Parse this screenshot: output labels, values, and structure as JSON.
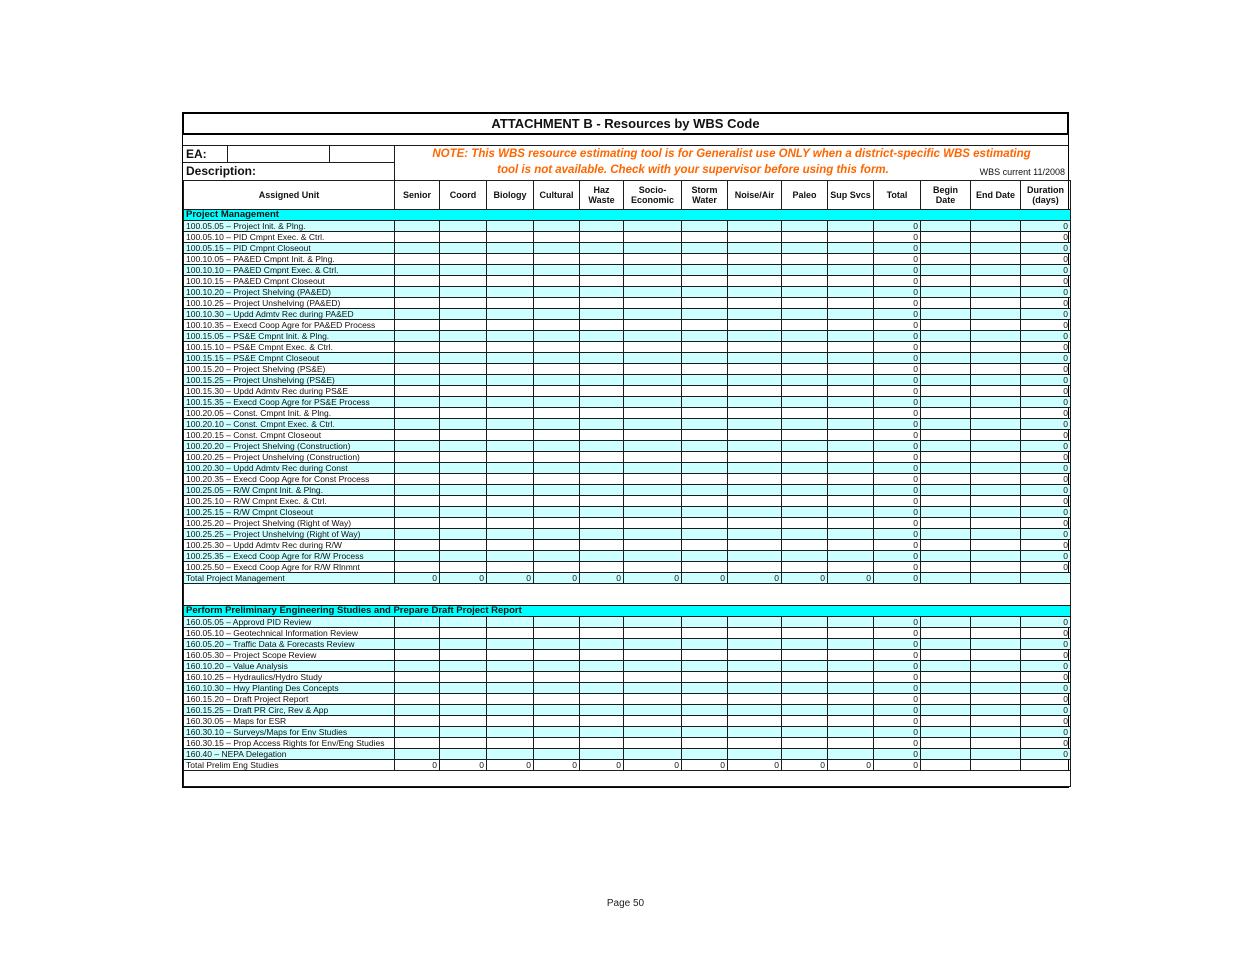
{
  "title": "ATTACHMENT B - Resources by WBS Code",
  "meta": {
    "ea_label": "EA:",
    "ea_value": "",
    "description_label": "Description:",
    "description_value": "",
    "note_line1": "NOTE: This WBS resource estimating tool is for Generalist use ONLY when a district-specific WBS estimating",
    "note_line2": "tool is not available. Check with your supervisor before using this form.",
    "wbs_current": "WBS current 11/2008"
  },
  "footer": "Page 50",
  "colors": {
    "section_header_bg": "#00ffff",
    "alt_row_bg": "#ccffff",
    "note_text": "#ff6600",
    "grid_border": "#1c1c1c"
  },
  "table": {
    "unit_column_header": "Assigned Unit",
    "columns": [
      {
        "id": "senior",
        "lines": [
          "Senior"
        ]
      },
      {
        "id": "coord",
        "lines": [
          "Coord"
        ]
      },
      {
        "id": "biology",
        "lines": [
          "Biology"
        ]
      },
      {
        "id": "cultural",
        "lines": [
          "Cultural"
        ]
      },
      {
        "id": "haz-waste",
        "lines": [
          "Haz",
          "Waste"
        ]
      },
      {
        "id": "socio-economic",
        "lines": [
          "Socio-",
          "Economic"
        ]
      },
      {
        "id": "storm-water",
        "lines": [
          "Storm",
          "Water"
        ]
      },
      {
        "id": "noise-air",
        "lines": [
          "Noise/Air"
        ]
      },
      {
        "id": "paleo",
        "lines": [
          "Paleo"
        ]
      },
      {
        "id": "sup-svcs",
        "lines": [
          "Sup Svcs"
        ]
      },
      {
        "id": "total",
        "lines": [
          "Total"
        ]
      },
      {
        "id": "begin-date",
        "lines": [
          "Begin",
          "Date"
        ]
      },
      {
        "id": "end-date",
        "lines": [
          "End Date"
        ]
      },
      {
        "id": "duration",
        "lines": [
          "Duration",
          "(days)"
        ]
      }
    ],
    "sections": [
      {
        "header": "Project Management",
        "rows": [
          {
            "label": "100.05.05 – Project Init. & Plng.",
            "total": "0",
            "duration": "0"
          },
          {
            "label": "100.05.10 – PID Cmpnt Exec. &  Ctrl.",
            "total": "0",
            "duration": "0"
          },
          {
            "label": "100.05.15 – PID Cmpnt Closeout",
            "total": "0",
            "duration": "0"
          },
          {
            "label": "100.10.05 – PA&ED Cmpnt Init. & Plng.",
            "total": "0",
            "duration": "0"
          },
          {
            "label": "100.10.10 – PA&ED Cmpnt Exec. & Ctrl.",
            "total": "0",
            "duration": "0"
          },
          {
            "label": "100.10.15 – PA&ED Cmpnt Closeout",
            "total": "0",
            "duration": "0"
          },
          {
            "label": "100.10.20 – Project Shelving (PA&ED)",
            "total": "0",
            "duration": "0"
          },
          {
            "label": "100.10.25 – Project Unshelving (PA&ED)",
            "total": "0",
            "duration": "0"
          },
          {
            "label": "100.10.30 – Updd Admtv Rec during PA&ED",
            "total": "0",
            "duration": "0"
          },
          {
            "label": "100.10.35 – Execd Coop Agre for PA&ED Process",
            "total": "0",
            "duration": "0"
          },
          {
            "label": "100.15.05 – PS&E Cmpnt Init. & Plng.",
            "total": "0",
            "duration": "0"
          },
          {
            "label": "100.15.10 – PS&E Cmpnt Exec. & Ctrl.",
            "total": "0",
            "duration": "0"
          },
          {
            "label": "100.15.15 – PS&E Cmpnt Closeout",
            "total": "0",
            "duration": "0"
          },
          {
            "label": "100.15.20 – Project Shelving (PS&E)",
            "total": "0",
            "duration": "0"
          },
          {
            "label": "100.15.25 – Project Unshelving (PS&E)",
            "total": "0",
            "duration": "0"
          },
          {
            "label": "100.15.30 – Updd Admtv Rec during PS&E",
            "total": "0",
            "duration": "0"
          },
          {
            "label": "100.15.35 – Execd Coop Agre for PS&E Process",
            "total": "0",
            "duration": "0"
          },
          {
            "label": "100.20.05 – Const. Cmpnt Init. & Plng.",
            "total": "0",
            "duration": "0"
          },
          {
            "label": "100.20.10 – Const. Cmpnt Exec. & Ctrl.",
            "total": "0",
            "duration": "0"
          },
          {
            "label": "100.20.15 – Const. Cmpnt Closeout",
            "total": "0",
            "duration": "0"
          },
          {
            "label": "100.20.20 – Project Shelving (Construction)",
            "total": "0",
            "duration": "0"
          },
          {
            "label": "100.20.25 – Project Unshelving (Construction)",
            "total": "0",
            "duration": "0"
          },
          {
            "label": "100.20.30 – Updd Admtv Rec during Const",
            "total": "0",
            "duration": "0"
          },
          {
            "label": "100.20.35 – Execd Coop Agre for Const Process",
            "total": "0",
            "duration": "0"
          },
          {
            "label": "100.25.05 – R/W Cmpnt Init. & Plng.",
            "total": "0",
            "duration": "0"
          },
          {
            "label": "100.25.10 – R/W Cmpnt Exec. & Ctrl.",
            "total": "0",
            "duration": "0"
          },
          {
            "label": "100.25.15 – R/W Cmpnt Closeout",
            "total": "0",
            "duration": "0"
          },
          {
            "label": "100.25.20 – Project Shelving (Right of Way)",
            "total": "0",
            "duration": "0"
          },
          {
            "label": "100.25.25 – Project Unshelving (Right of Way)",
            "total": "0",
            "duration": "0"
          },
          {
            "label": "100.25.30 – Updd Admtv Rec during R/W",
            "total": "0",
            "duration": "0"
          },
          {
            "label": "100.25.35 – Execd Coop Agre for R/W Process",
            "total": "0",
            "duration": "0"
          },
          {
            "label": "100.25.50 – Execd Coop Agre for R/W Rlnmnt",
            "total": "0",
            "duration": "0"
          }
        ],
        "total_row": {
          "label": "Total Project Management",
          "values": [
            "0",
            "0",
            "0",
            "0",
            "0",
            "0",
            "0",
            "0",
            "0",
            "0",
            "0"
          ],
          "begin": "",
          "end": "",
          "duration": ""
        }
      },
      {
        "header": "Perform Preliminary Engineering Studies and Prepare Draft Project Report",
        "rows": [
          {
            "label": "160.05.05 – Approvd PID Review",
            "total": "0",
            "duration": "0"
          },
          {
            "label": "160.05.10 – Geotechnical Information Review",
            "total": "0",
            "duration": "0"
          },
          {
            "label": "160.05.20 – Traffic Data & Forecasts Review",
            "total": "0",
            "duration": "0"
          },
          {
            "label": "160.05.30 – Project Scope Review",
            "total": "0",
            "duration": "0"
          },
          {
            "label": "160.10.20 – Value Analysis",
            "total": "0",
            "duration": "0"
          },
          {
            "label": "160.10.25 – Hydraulics/Hydro Study",
            "total": "0",
            "duration": "0"
          },
          {
            "label": "160.10.30 – Hwy Planting Des Concepts",
            "total": "0",
            "duration": "0"
          },
          {
            "label": "160.15.20 – Draft Project Report",
            "total": "0",
            "duration": "0"
          },
          {
            "label": "160.15.25 – Draft PR Circ, Rev & App",
            "total": "0",
            "duration": "0"
          },
          {
            "label": "160.30.05 – Maps for ESR",
            "total": "0",
            "duration": "0"
          },
          {
            "label": "160.30.10 – Surveys/Maps for Env Studies",
            "total": "0",
            "duration": "0"
          },
          {
            "label": "160.30.15 – Prop Access Rights for Env/Eng Studies",
            "total": "0",
            "duration": "0"
          },
          {
            "label": "160.40 – NEPA Delegation",
            "total": "0",
            "duration": "0"
          }
        ],
        "total_row": {
          "label": "Total  Prelim Eng Studies",
          "values": [
            "0",
            "0",
            "0",
            "0",
            "0",
            "0",
            "0",
            "0",
            "0",
            "0",
            "0"
          ],
          "begin": "",
          "end": "",
          "duration": ""
        }
      }
    ]
  }
}
